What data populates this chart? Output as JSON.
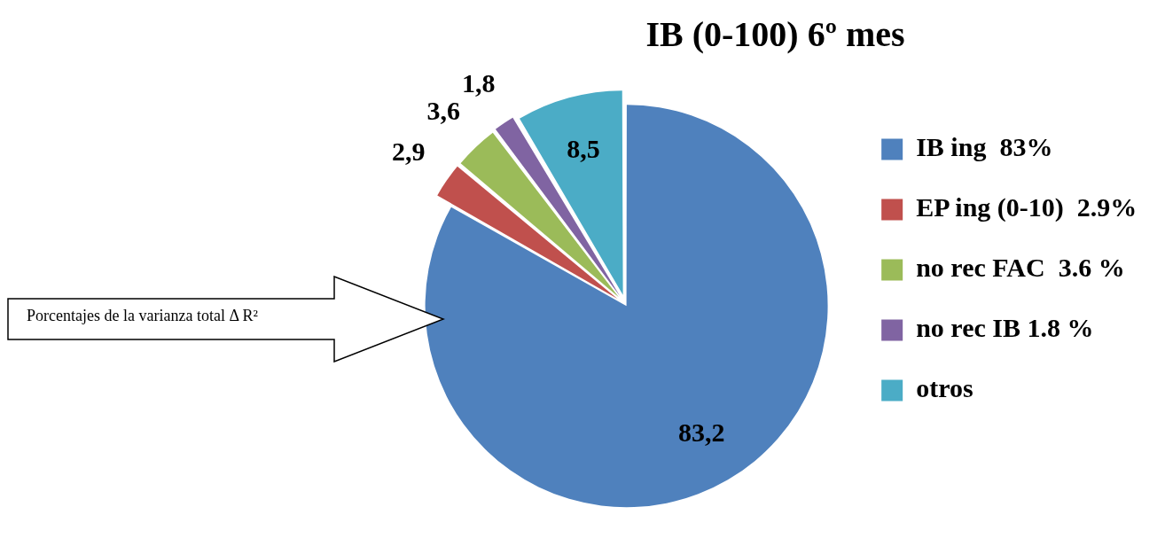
{
  "chart_data": {
    "type": "pie",
    "title": "IB (0-100) 6º mes",
    "categories": [
      "IB ing  83%",
      "EP ing (0-10)  2.9%",
      "no rec FAC  3.6 %",
      "no rec IB 1.8 %",
      "otros"
    ],
    "values": [
      83.2,
      2.9,
      3.6,
      1.8,
      8.5
    ],
    "value_labels": [
      "83,2",
      "2,9",
      "3,6",
      "1,8",
      "8,5"
    ],
    "colors": [
      "#4f81bd",
      "#c0504d",
      "#9bbb59",
      "#8064a2",
      "#4bacc6"
    ],
    "legend": "right",
    "annotations": [
      "Porcentajes de la varianza total Δ R²"
    ]
  }
}
